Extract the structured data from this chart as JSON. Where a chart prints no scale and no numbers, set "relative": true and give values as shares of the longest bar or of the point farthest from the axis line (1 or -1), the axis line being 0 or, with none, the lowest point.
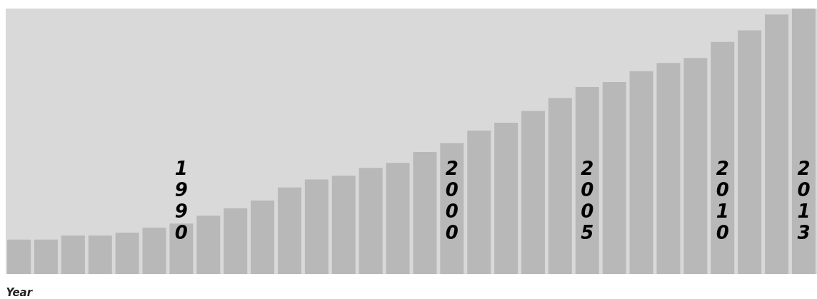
{
  "chart_data": {
    "type": "bar",
    "relative": true,
    "xlabel": "Year",
    "categories": [
      null,
      null,
      null,
      null,
      null,
      null,
      "1990",
      null,
      null,
      null,
      null,
      null,
      null,
      null,
      null,
      null,
      "2000",
      null,
      null,
      null,
      null,
      "2005",
      null,
      null,
      null,
      null,
      "2010",
      null,
      null,
      "2013"
    ],
    "values": [
      0.13,
      0.13,
      0.145,
      0.145,
      0.156,
      0.175,
      0.19,
      0.22,
      0.247,
      0.277,
      0.326,
      0.356,
      0.37,
      0.4,
      0.419,
      0.46,
      0.493,
      0.54,
      0.57,
      0.614,
      0.663,
      0.704,
      0.723,
      0.764,
      0.795,
      0.814,
      0.874,
      0.918,
      0.978,
      1.0
    ],
    "color": "#b8b8b8",
    "grid": false
  }
}
